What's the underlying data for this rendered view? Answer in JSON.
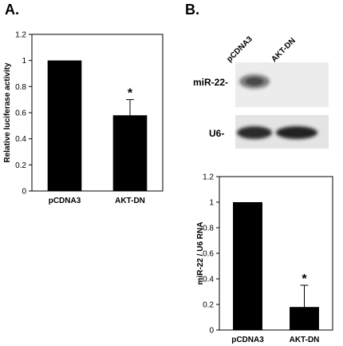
{
  "panels": {
    "a_label": "A.",
    "b_label": "B."
  },
  "blot": {
    "lane_labels": [
      "pCDNA3",
      "AKT-DN"
    ],
    "row_labels": [
      "miR-22-",
      "U6-"
    ]
  },
  "chart_data": [
    {
      "type": "bar",
      "panel": "A",
      "categories": [
        "pCDNA3",
        "AKT-DN"
      ],
      "values": [
        1.0,
        0.58
      ],
      "error_upper": [
        0,
        0.12
      ],
      "annotations": [
        "",
        "*"
      ],
      "ylabel": "Relative luciferase activity",
      "ylim": [
        0,
        1.2
      ],
      "yticks": [
        "0",
        "0.2",
        "0.4",
        "0.6",
        "0.8",
        "1",
        "1.2"
      ],
      "bar_color": "#000000"
    },
    {
      "type": "bar",
      "panel": "B",
      "categories": [
        "pCDNA3",
        "AKT-DN"
      ],
      "values": [
        1.0,
        0.18
      ],
      "error_upper": [
        0,
        0.17
      ],
      "annotations": [
        "",
        "*"
      ],
      "ylabel": "miR-22 / U6 RNA",
      "ylim": [
        0,
        1.2
      ],
      "yticks": [
        "0",
        "0.2",
        "0.4",
        "0.6",
        "0.8",
        "1",
        "1.2"
      ],
      "bar_color": "#000000"
    }
  ]
}
